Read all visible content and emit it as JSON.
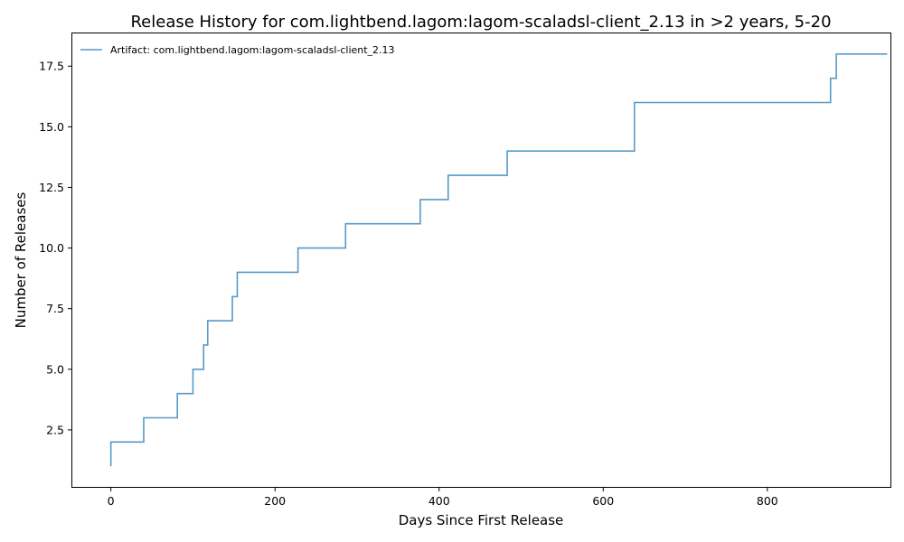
{
  "chart_data": {
    "type": "line",
    "step": "post",
    "title": "Release History for com.lightbend.lagom:lagom-scaladsl-client_2.13 in >2 years, 5-20",
    "xlabel": "Days Since First Release",
    "ylabel": "Number of Releases",
    "xlim": [
      -47,
      950
    ],
    "ylim": [
      0.15,
      18.85
    ],
    "xticks": [
      0,
      200,
      400,
      600,
      800
    ],
    "yticks": [
      2.5,
      5.0,
      7.5,
      10.0,
      12.5,
      15.0,
      17.5
    ],
    "xtick_labels": [
      "0",
      "200",
      "400",
      "600",
      "800"
    ],
    "ytick_labels": [
      "2.5",
      "5.0",
      "7.5",
      "10.0",
      "12.5",
      "15.0",
      "17.5"
    ],
    "grid": false,
    "legend_position": "top-left",
    "series": [
      {
        "name": "Artifact: com.lightbend.lagom:lagom-scaladsl-client_2.13",
        "color": "#1f77b4",
        "x": [
          0,
          0,
          40,
          81,
          100,
          113,
          118,
          148,
          154,
          228,
          286,
          377,
          411,
          483,
          638,
          877,
          884,
          946
        ],
        "y": [
          1,
          2,
          3,
          4,
          5,
          6,
          7,
          8,
          9,
          10,
          11,
          12,
          13,
          14,
          16,
          17,
          18,
          18
        ]
      }
    ]
  }
}
